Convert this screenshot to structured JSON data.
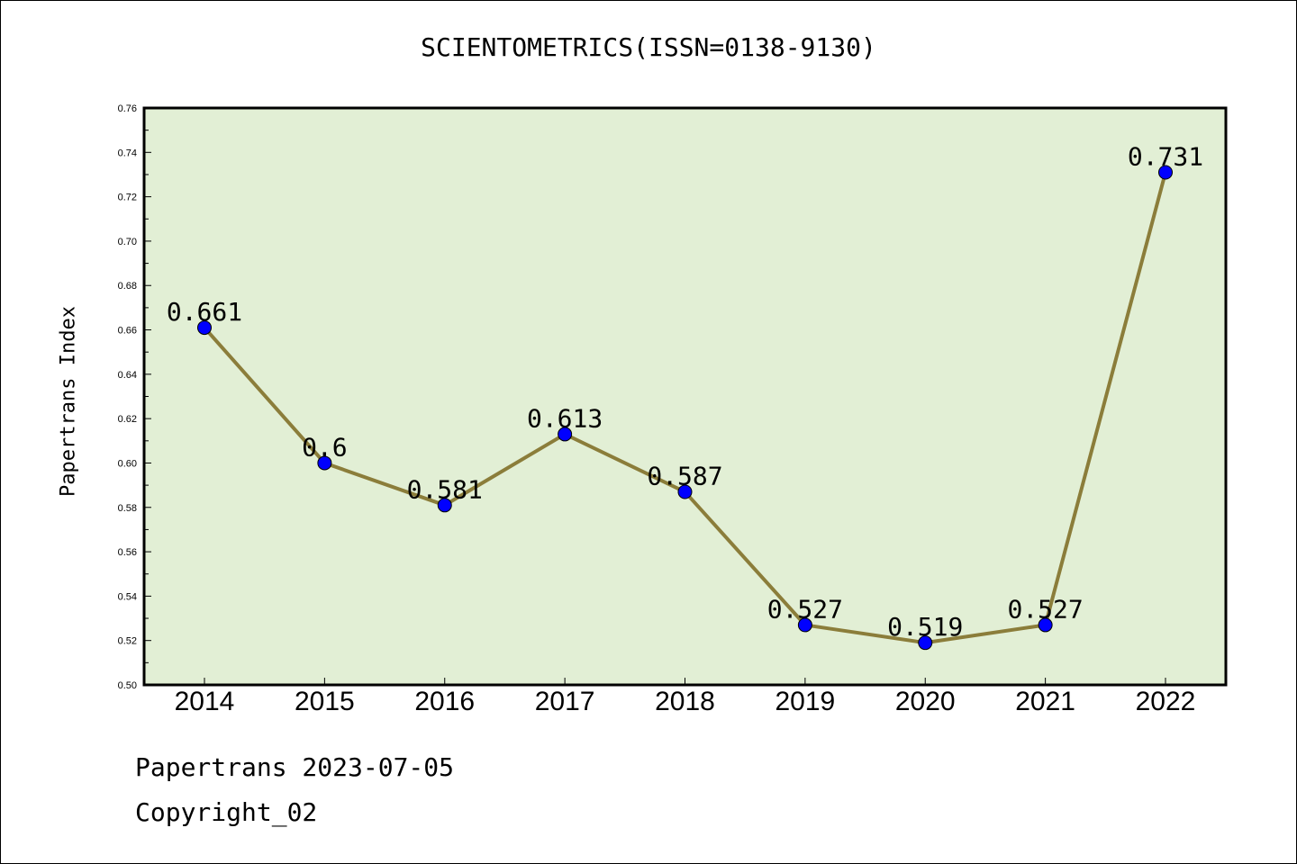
{
  "chart_data": {
    "type": "line",
    "title": "SCIENTOMETRICS(ISSN=0138-9130)",
    "xlabel": "",
    "ylabel": "Papertrans Index",
    "categories": [
      "2014",
      "2015",
      "2016",
      "2017",
      "2018",
      "2019",
      "2020",
      "2021",
      "2022"
    ],
    "values": [
      0.661,
      0.6,
      0.581,
      0.613,
      0.587,
      0.527,
      0.519,
      0.527,
      0.731
    ],
    "data_labels": [
      "0.661",
      "0.6",
      "0.581",
      "0.613",
      "0.587",
      "0.527",
      "0.519",
      "0.527",
      "0.731"
    ],
    "ylim": [
      0.5,
      0.76
    ],
    "yticks": [
      "0.50",
      "0.52",
      "0.54",
      "0.56",
      "0.58",
      "0.60",
      "0.62",
      "0.64",
      "0.66",
      "0.68",
      "0.70",
      "0.72",
      "0.74",
      "0.76"
    ],
    "grid": false,
    "colors": {
      "plot_background": "#e2efd5",
      "line": "#8b7d3a",
      "marker": "#0000ff"
    }
  },
  "footer": {
    "source": "Papertrans 2023-07-05",
    "copyright": "Copyright_02"
  }
}
